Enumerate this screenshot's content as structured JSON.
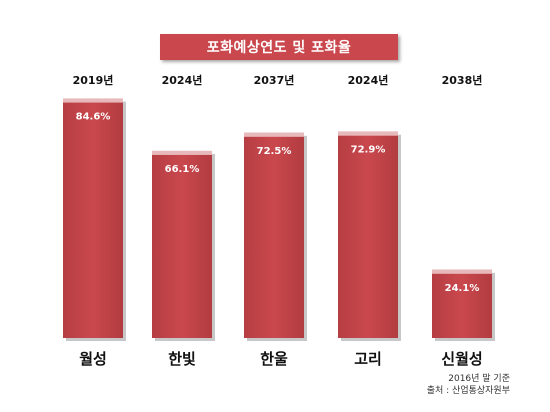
{
  "chart_data": {
    "type": "bar",
    "title": "포화예상연도 및 포화율",
    "categories": [
      "월성",
      "한빛",
      "한울",
      "고리",
      "신월성"
    ],
    "years": [
      "2019년",
      "2024년",
      "2037년",
      "2024년",
      "2038년"
    ],
    "values": [
      84.6,
      66.1,
      72.5,
      72.9,
      24.1
    ],
    "value_labels": [
      "84.6%",
      "66.1%",
      "72.5%",
      "72.9%",
      "24.1%"
    ],
    "ylim": [
      0,
      100
    ],
    "xlabel": "",
    "ylabel": "",
    "grid": false,
    "bar_color": "#c0474b",
    "bar_top_color": "#e8b9bb"
  },
  "notes": {
    "basis": "2016년 말 기준",
    "source": "출처 : 산업통상자원부"
  }
}
